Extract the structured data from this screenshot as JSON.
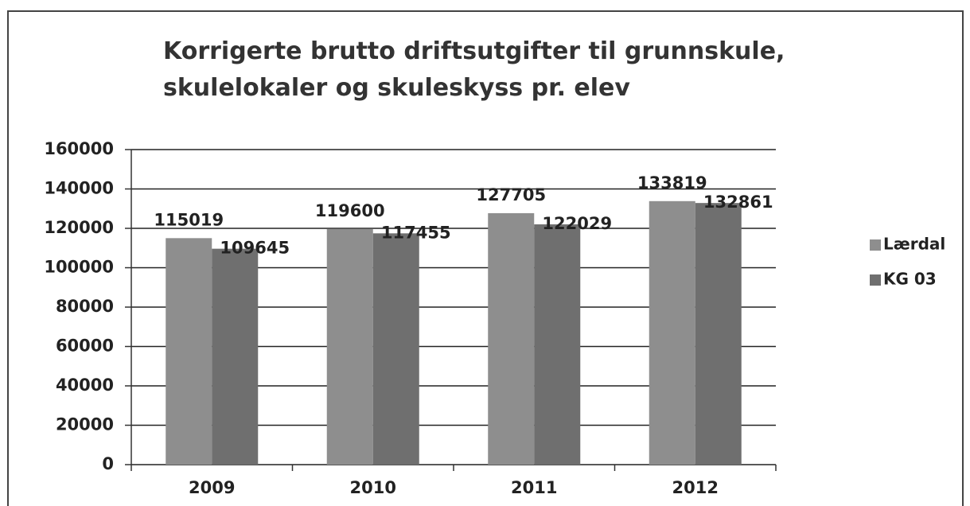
{
  "chart_data": {
    "type": "bar",
    "title": "Korrigerte brutto driftsutgifter til grunnskule, skulelokaler og skuleskyss pr. elev",
    "categories": [
      "2009",
      "2010",
      "2011",
      "2012"
    ],
    "series": [
      {
        "name": "Lærdal",
        "color": "#8e8e8e",
        "values": [
          115019,
          119600,
          127705,
          133819
        ]
      },
      {
        "name": "KG 03",
        "color": "#6f6f6f",
        "values": [
          109645,
          117455,
          122029,
          132861
        ]
      }
    ],
    "ylim": [
      0,
      160000
    ],
    "yticks": [
      0,
      20000,
      40000,
      60000,
      80000,
      100000,
      120000,
      140000,
      160000
    ],
    "grid": true,
    "legend": "right"
  }
}
